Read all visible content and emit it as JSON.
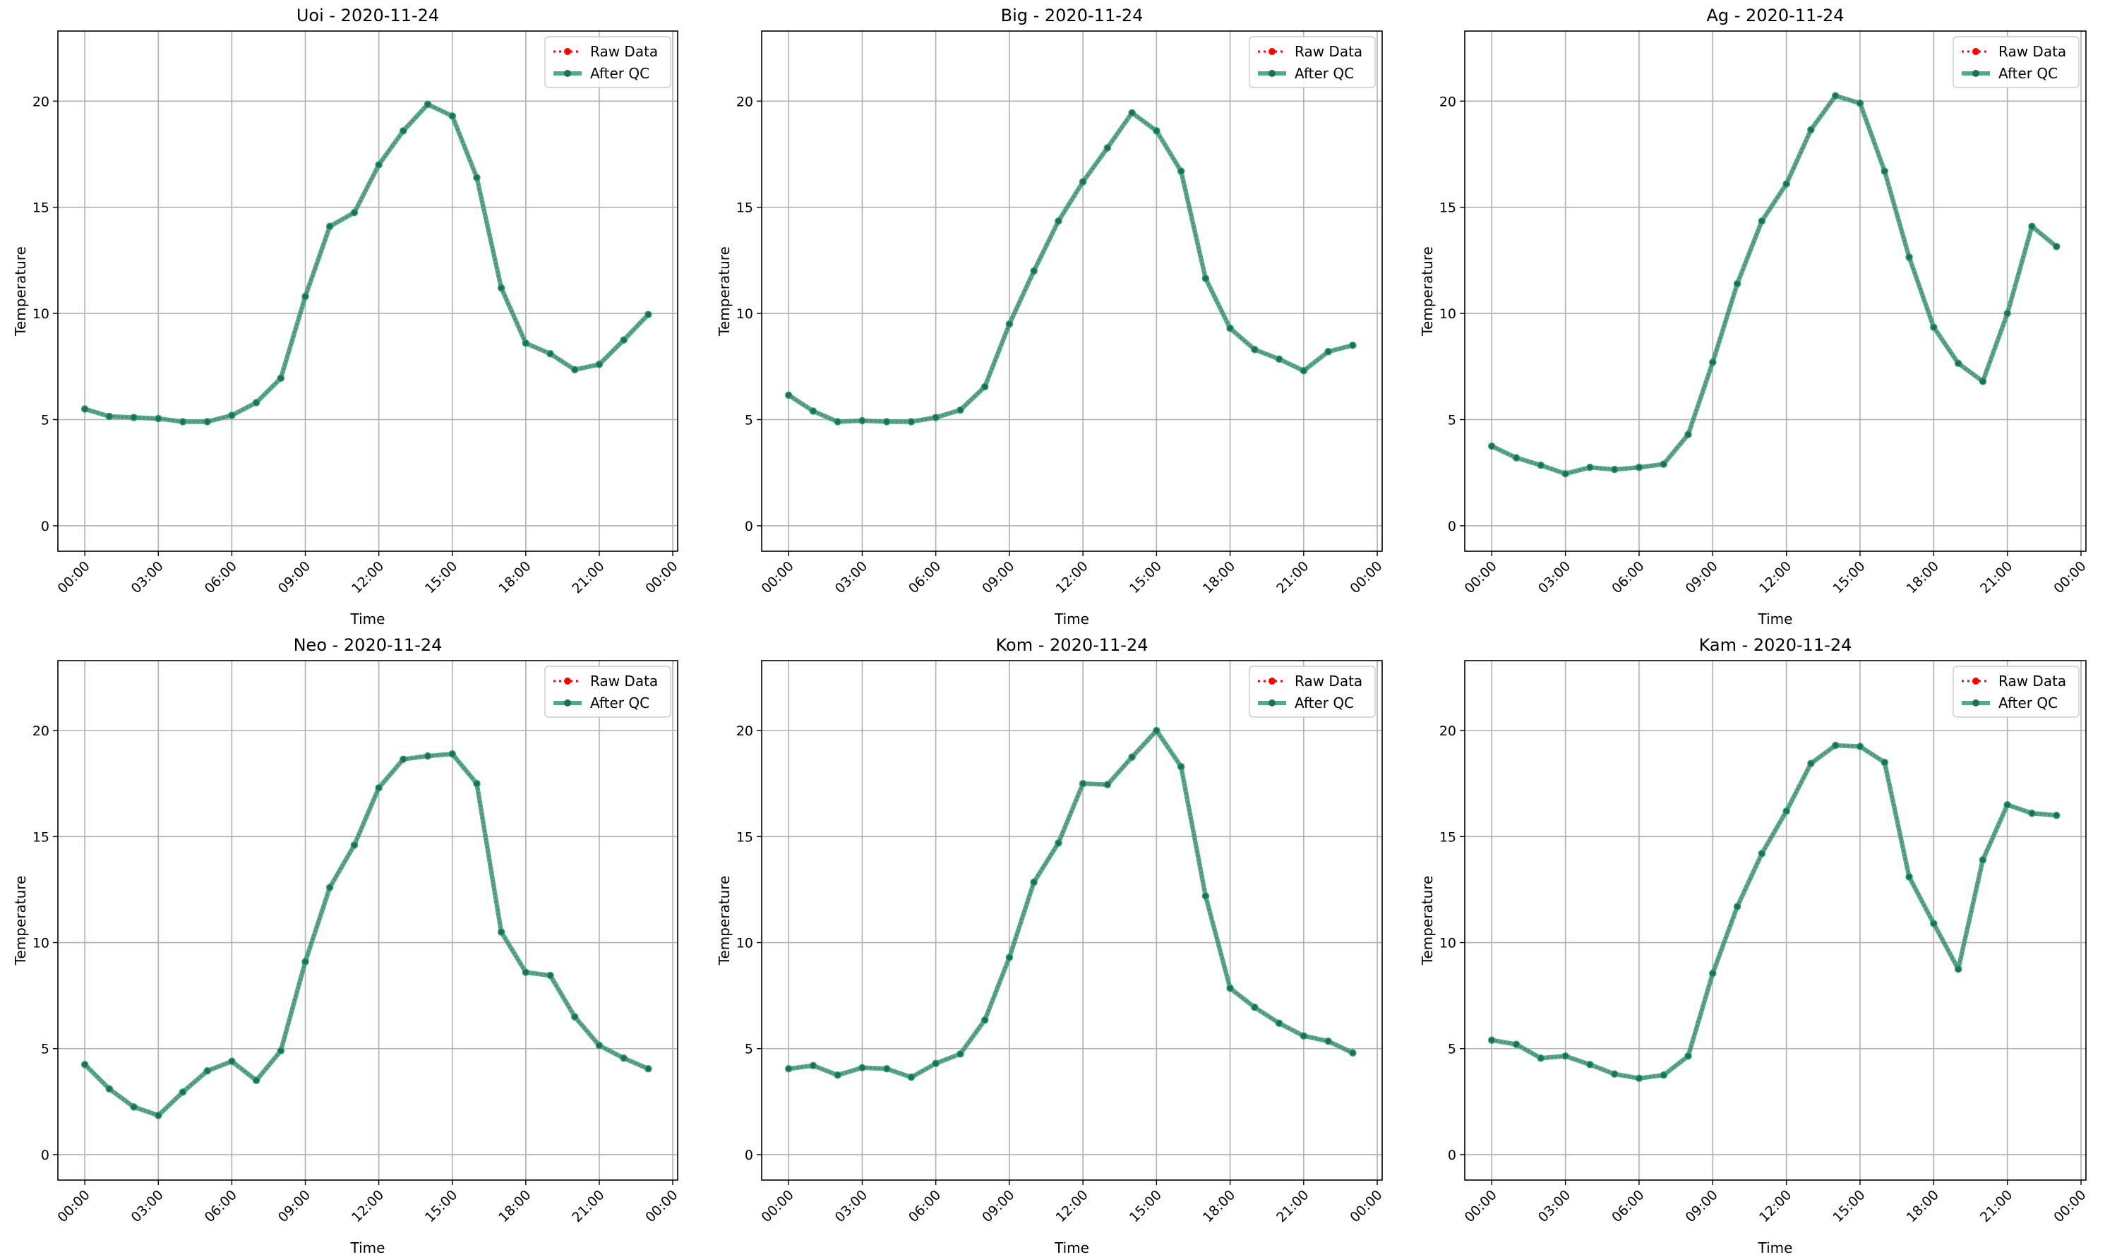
{
  "figure": {
    "time_ticks": [
      "00:00",
      "03:00",
      "06:00",
      "09:00",
      "12:00",
      "15:00",
      "18:00",
      "21:00",
      "00:00"
    ],
    "y_ticks": [
      0,
      5,
      10,
      15,
      20
    ]
  },
  "colors": {
    "raw": "#ff0000",
    "qc": "#2e9e78",
    "grid": "#b0b0b0",
    "axes": "#000000"
  },
  "chart_data": [
    {
      "type": "line",
      "title": "Uoi - 2020-11-24",
      "xlabel": "Time",
      "ylabel": "Temperature",
      "x": [
        0,
        1,
        2,
        3,
        4,
        5,
        6,
        7,
        8,
        9,
        10,
        11,
        12,
        13,
        14,
        15,
        16,
        17,
        18,
        19,
        20,
        21,
        22,
        23
      ],
      "x_unit": "hour of day",
      "xlim": [
        -1.1,
        24.2
      ],
      "ylim": [
        -1.2,
        23.3
      ],
      "grid": true,
      "legend": "top-right",
      "series": [
        {
          "name": "Raw Data",
          "style": "dotted",
          "values": [
            5.5,
            5.15,
            5.1,
            5.05,
            4.9,
            4.9,
            5.2,
            5.8,
            6.95,
            10.8,
            14.1,
            14.75,
            17.0,
            18.6,
            19.85,
            19.3,
            16.4,
            11.2,
            8.6,
            8.1,
            7.35,
            7.6,
            8.75,
            9.95
          ]
        },
        {
          "name": "After QC",
          "style": "solid",
          "values": [
            5.5,
            5.15,
            5.1,
            5.05,
            4.9,
            4.9,
            5.2,
            5.8,
            6.95,
            10.8,
            14.1,
            14.75,
            17.0,
            18.6,
            19.85,
            19.3,
            16.4,
            11.2,
            8.6,
            8.1,
            7.35,
            7.6,
            8.75,
            9.95
          ]
        }
      ]
    },
    {
      "type": "line",
      "title": "Big - 2020-11-24",
      "xlabel": "Time",
      "ylabel": "Temperature",
      "x": [
        0,
        1,
        2,
        3,
        4,
        5,
        6,
        7,
        8,
        9,
        10,
        11,
        12,
        13,
        14,
        15,
        16,
        17,
        18,
        19,
        20,
        21,
        22,
        23
      ],
      "x_unit": "hour of day",
      "xlim": [
        -1.1,
        24.2
      ],
      "ylim": [
        -1.2,
        23.3
      ],
      "grid": true,
      "legend": "top-right",
      "series": [
        {
          "name": "Raw Data",
          "style": "dotted",
          "values": [
            6.15,
            5.4,
            4.9,
            4.95,
            4.9,
            4.9,
            5.1,
            5.45,
            6.55,
            9.5,
            12.0,
            14.35,
            16.2,
            17.8,
            19.45,
            18.6,
            16.7,
            11.65,
            9.3,
            8.3,
            7.85,
            7.3,
            8.2,
            8.5
          ]
        },
        {
          "name": "After QC",
          "style": "solid",
          "values": [
            6.15,
            5.4,
            4.9,
            4.95,
            4.9,
            4.9,
            5.1,
            5.45,
            6.55,
            9.5,
            12.0,
            14.35,
            16.2,
            17.8,
            19.45,
            18.6,
            16.7,
            11.65,
            9.3,
            8.3,
            7.85,
            7.3,
            8.2,
            8.5
          ]
        }
      ]
    },
    {
      "type": "line",
      "title": "Ag - 2020-11-24",
      "xlabel": "Time",
      "ylabel": "Temperature",
      "x": [
        0,
        1,
        2,
        3,
        4,
        5,
        6,
        7,
        8,
        9,
        10,
        11,
        12,
        13,
        14,
        15,
        16,
        17,
        18,
        19,
        20,
        21,
        22,
        23
      ],
      "x_unit": "hour of day",
      "xlim": [
        -1.1,
        24.2
      ],
      "ylim": [
        -1.2,
        23.3
      ],
      "grid": true,
      "legend": "top-right",
      "series": [
        {
          "name": "Raw Data",
          "style": "dotted",
          "values": [
            3.75,
            3.2,
            2.85,
            2.45,
            2.75,
            2.65,
            2.75,
            2.9,
            4.3,
            7.7,
            11.4,
            14.35,
            16.1,
            18.65,
            20.25,
            19.9,
            16.7,
            12.65,
            9.35,
            7.65,
            6.8,
            10.0,
            14.1,
            13.15
          ]
        },
        {
          "name": "After QC",
          "style": "solid",
          "values": [
            3.75,
            3.2,
            2.85,
            2.45,
            2.75,
            2.65,
            2.75,
            2.9,
            4.3,
            7.7,
            11.4,
            14.35,
            16.1,
            18.65,
            20.25,
            19.9,
            16.7,
            12.65,
            9.35,
            7.65,
            6.8,
            10.0,
            14.1,
            13.15
          ]
        }
      ]
    },
    {
      "type": "line",
      "title": "Neo - 2020-11-24",
      "xlabel": "Time",
      "ylabel": "Temperature",
      "x": [
        0,
        1,
        2,
        3,
        4,
        5,
        6,
        7,
        8,
        9,
        10,
        11,
        12,
        13,
        14,
        15,
        16,
        17,
        18,
        19,
        20,
        21,
        22,
        23
      ],
      "x_unit": "hour of day",
      "xlim": [
        -1.1,
        24.2
      ],
      "ylim": [
        -1.2,
        23.3
      ],
      "grid": true,
      "legend": "top-right",
      "series": [
        {
          "name": "Raw Data",
          "style": "dotted",
          "values": [
            4.25,
            3.1,
            2.25,
            1.85,
            2.95,
            3.95,
            4.4,
            3.5,
            4.9,
            9.1,
            12.6,
            14.6,
            17.3,
            18.65,
            18.8,
            18.9,
            17.5,
            10.5,
            8.6,
            8.45,
            6.5,
            5.15,
            4.55,
            4.05
          ]
        },
        {
          "name": "After QC",
          "style": "solid",
          "values": [
            4.25,
            3.1,
            2.25,
            1.85,
            2.95,
            3.95,
            4.4,
            3.5,
            4.9,
            9.1,
            12.6,
            14.6,
            17.3,
            18.65,
            18.8,
            18.9,
            17.5,
            10.5,
            8.6,
            8.45,
            6.5,
            5.15,
            4.55,
            4.05
          ]
        }
      ]
    },
    {
      "type": "line",
      "title": "Kom - 2020-11-24",
      "xlabel": "Time",
      "ylabel": "Temperature",
      "x": [
        0,
        1,
        2,
        3,
        4,
        5,
        6,
        7,
        8,
        9,
        10,
        11,
        12,
        13,
        14,
        15,
        16,
        17,
        18,
        19,
        20,
        21,
        22,
        23
      ],
      "x_unit": "hour of day",
      "xlim": [
        -1.1,
        24.2
      ],
      "ylim": [
        -1.2,
        23.3
      ],
      "grid": true,
      "legend": "top-right",
      "series": [
        {
          "name": "Raw Data",
          "style": "dotted",
          "values": [
            4.05,
            4.2,
            3.75,
            4.1,
            4.05,
            3.65,
            4.3,
            4.75,
            6.35,
            9.3,
            12.85,
            14.7,
            17.5,
            17.45,
            18.75,
            20.0,
            18.3,
            12.2,
            7.85,
            6.95,
            6.2,
            5.6,
            5.35,
            4.8
          ]
        },
        {
          "name": "After QC",
          "style": "solid",
          "values": [
            4.05,
            4.2,
            3.75,
            4.1,
            4.05,
            3.65,
            4.3,
            4.75,
            6.35,
            9.3,
            12.85,
            14.7,
            17.5,
            17.45,
            18.75,
            20.0,
            18.3,
            12.2,
            7.85,
            6.95,
            6.2,
            5.6,
            5.35,
            4.8
          ]
        }
      ]
    },
    {
      "type": "line",
      "title": "Kam - 2020-11-24",
      "xlabel": "Time",
      "ylabel": "Temperature",
      "x": [
        0,
        1,
        2,
        3,
        4,
        5,
        6,
        7,
        8,
        9,
        10,
        11,
        12,
        13,
        14,
        15,
        16,
        17,
        18,
        19,
        20,
        21,
        22,
        23
      ],
      "x_unit": "hour of day",
      "xlim": [
        -1.1,
        24.2
      ],
      "ylim": [
        -1.2,
        23.3
      ],
      "grid": true,
      "legend": "top-right",
      "series": [
        {
          "name": "Raw Data",
          "style": "dotted",
          "values": [
            5.4,
            5.2,
            4.55,
            4.65,
            4.25,
            3.8,
            3.6,
            3.75,
            4.65,
            8.55,
            11.7,
            14.2,
            16.2,
            18.45,
            19.3,
            19.25,
            18.5,
            13.1,
            10.9,
            8.75,
            13.9,
            16.5,
            16.1,
            16.0
          ]
        },
        {
          "name": "After QC",
          "style": "solid",
          "values": [
            5.4,
            5.2,
            4.55,
            4.65,
            4.25,
            3.8,
            3.6,
            3.75,
            4.65,
            8.55,
            11.7,
            14.2,
            16.2,
            18.45,
            19.3,
            19.25,
            18.5,
            13.1,
            10.9,
            8.75,
            13.9,
            16.5,
            16.1,
            16.0
          ]
        }
      ]
    }
  ]
}
